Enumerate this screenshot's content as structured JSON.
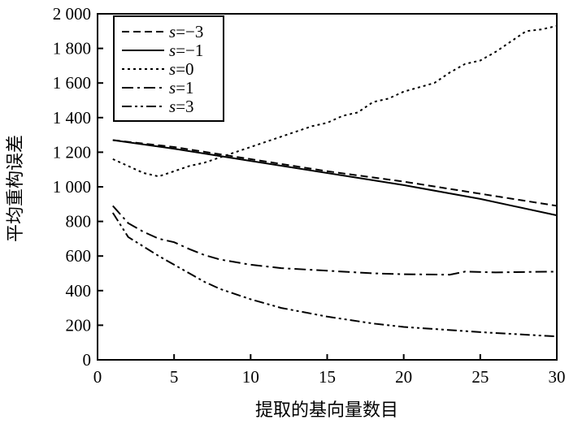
{
  "chart_data": {
    "type": "line",
    "xlabel": "提取的基向量数目",
    "ylabel": "平均重构误差",
    "xlim": [
      0,
      30
    ],
    "ylim": [
      0,
      2000
    ],
    "x_ticks": [
      0,
      5,
      10,
      15,
      20,
      25,
      30
    ],
    "x_tick_labels": [
      "0",
      "5",
      "10",
      "15",
      "20",
      "25",
      "30"
    ],
    "y_ticks": [
      0,
      200,
      400,
      600,
      800,
      1000,
      1200,
      1400,
      1600,
      1800,
      2000
    ],
    "y_tick_labels": [
      "0",
      "200",
      "400",
      "600",
      "800",
      "1 000",
      "1 200",
      "1 400",
      "1 600",
      "1 800",
      "2 000"
    ],
    "grid": false,
    "legend_position": "top-left",
    "series": [
      {
        "name": "s=−3",
        "var": "s",
        "value": "=−3",
        "dash": "dashed",
        "x": [
          1,
          5,
          10,
          15,
          20,
          25,
          30
        ],
        "y": [
          1270,
          1230,
          1160,
          1090,
          1030,
          960,
          890
        ]
      },
      {
        "name": "s=−1",
        "var": "s",
        "value": "=−1",
        "dash": "solid",
        "x": [
          1,
          5,
          10,
          15,
          20,
          25,
          30
        ],
        "y": [
          1270,
          1220,
          1150,
          1080,
          1010,
          930,
          835
        ]
      },
      {
        "name": "s=0",
        "var": "s",
        "value": "=0",
        "dash": "dotted",
        "x": [
          1,
          2,
          3,
          4,
          5,
          6,
          7,
          8,
          9,
          10,
          12,
          14,
          15,
          16,
          17,
          18,
          19,
          20,
          22,
          23,
          24,
          25,
          26,
          27,
          28,
          29,
          30
        ],
        "y": [
          1160,
          1120,
          1080,
          1060,
          1090,
          1120,
          1140,
          1170,
          1200,
          1230,
          1290,
          1350,
          1370,
          1410,
          1430,
          1490,
          1510,
          1550,
          1600,
          1660,
          1710,
          1730,
          1780,
          1840,
          1900,
          1910,
          1930
        ]
      },
      {
        "name": "s=1",
        "var": "s",
        "value": "=1",
        "dash": "dashdot",
        "x": [
          1,
          2,
          3,
          4,
          5,
          6,
          7,
          8,
          10,
          12,
          15,
          18,
          20,
          23,
          24,
          26,
          28,
          30
        ],
        "y": [
          890,
          790,
          740,
          700,
          680,
          640,
          605,
          580,
          550,
          530,
          515,
          500,
          495,
          492,
          510,
          505,
          508,
          510
        ]
      },
      {
        "name": "s=3",
        "var": "s",
        "value": "=3",
        "dash": "dashdotdot",
        "x": [
          1,
          2,
          3,
          4,
          5,
          6,
          7,
          8,
          10,
          12,
          15,
          18,
          20,
          25,
          30
        ],
        "y": [
          850,
          710,
          655,
          600,
          550,
          500,
          450,
          410,
          350,
          300,
          250,
          210,
          190,
          160,
          135
        ]
      }
    ]
  }
}
